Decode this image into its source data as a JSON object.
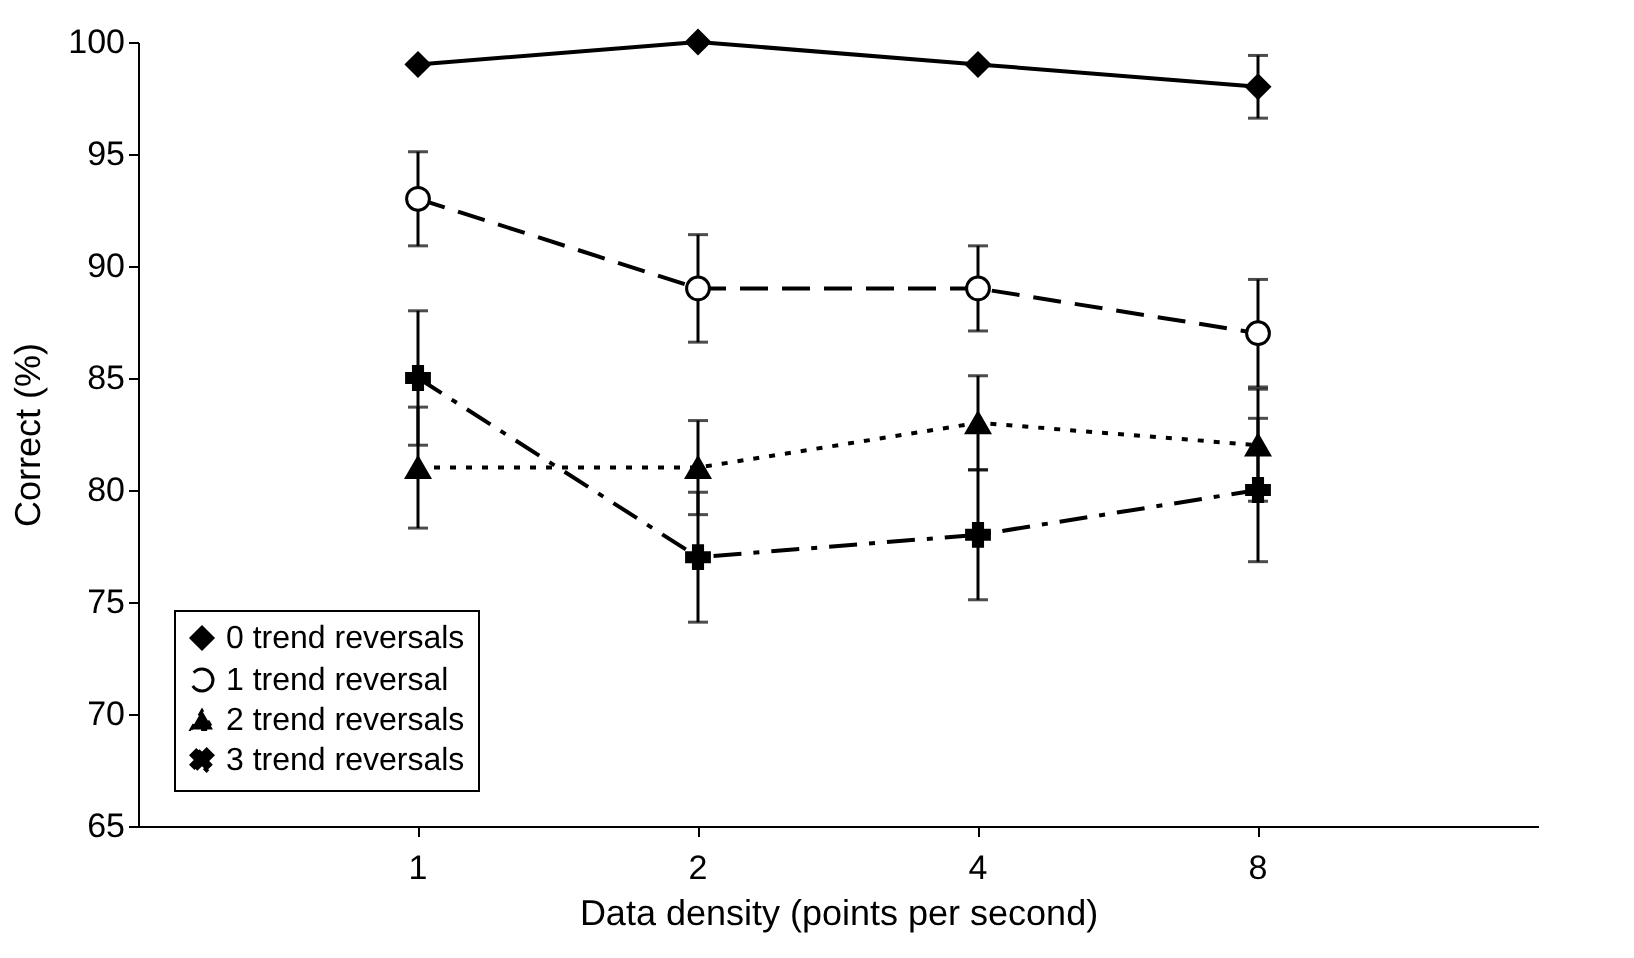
{
  "chart_data": {
    "type": "line",
    "xlabel": "Data density (points per second)",
    "ylabel": "Correct (%)",
    "categories": [
      "1",
      "2",
      "4",
      "8"
    ],
    "ylim": [
      65,
      100
    ],
    "yticks": [
      65,
      70,
      75,
      80,
      85,
      90,
      95,
      100
    ],
    "grid": false,
    "legend": "bottom left",
    "series": [
      {
        "name": "0 trend reversals",
        "color": "#000000",
        "marker": "diamond",
        "line_style": "solid",
        "values": [
          99,
          100,
          99,
          98
        ],
        "errors": [
          null,
          null,
          null,
          1.4
        ]
      },
      {
        "name": "1 trend reversal",
        "color": "#000000",
        "marker": "circle",
        "line_style": "dashed",
        "values": [
          93,
          89,
          89,
          87
        ],
        "errors": [
          2.1,
          2.4,
          1.9,
          2.4
        ]
      },
      {
        "name": "2 trend reversals",
        "color": "#000000",
        "marker": "triangle",
        "line_style": "dotted",
        "values": [
          81,
          81,
          83,
          82
        ],
        "errors": [
          2.7,
          2.1,
          2.1,
          2.5
        ]
      },
      {
        "name": "3 trend reversals",
        "color": "#000000",
        "marker": "cross",
        "line_style": "dashdot",
        "values": [
          85,
          77,
          78,
          80
        ],
        "errors": [
          3,
          2.9,
          2.9,
          3.2
        ]
      }
    ]
  }
}
